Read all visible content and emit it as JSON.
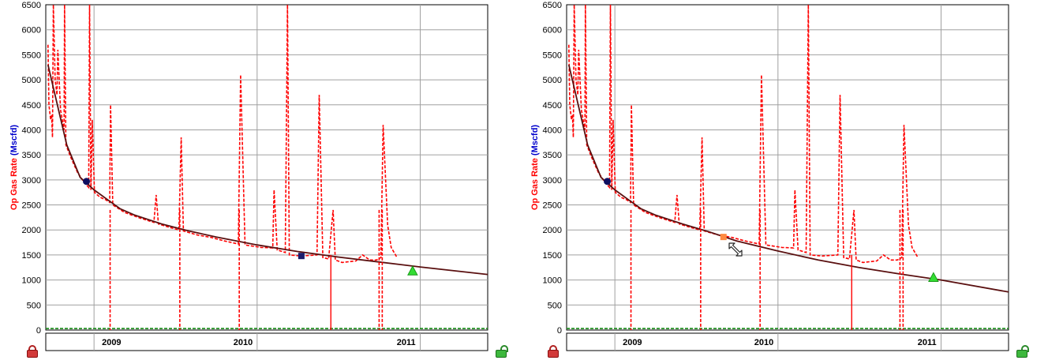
{
  "colors": {
    "data_line": "#ff0000",
    "forecast_line": "#5a1010",
    "baseline": "#138a13",
    "grid": "#a0a0a0",
    "label_red": "#ff0000",
    "label_blue": "#0000cc",
    "start_marker": "#101060",
    "handle_marker": "#1c1c6c",
    "handle_marker_active": "#ff8a40",
    "end_marker": "#33dd33"
  },
  "icons": {
    "left_lock": "red-lock-icon",
    "right_lock": "green-unlock-icon",
    "cursor": "diagonal-resize-cursor-icon"
  },
  "chart_data": [
    {
      "type": "line",
      "panel": "left",
      "ylabel_part1": "Op Gas Rate ",
      "ylabel_part2": "(Mscfd)",
      "ylim": [
        0,
        6500
      ],
      "yticks": [
        0,
        500,
        1000,
        1500,
        2000,
        2500,
        3000,
        3500,
        4000,
        4500,
        5000,
        5500,
        6000,
        6500
      ],
      "xlim": [
        "2008-09-15",
        "2011-06-01"
      ],
      "year_labels": [
        "2009",
        "2010",
        "2011"
      ],
      "grid": true,
      "series": [
        {
          "style": "dashed",
          "values": [
            [
              "2008-09-20",
              5700
            ],
            [
              "2008-09-22",
              4500
            ],
            [
              "2008-09-26",
              4200
            ],
            [
              "2008-09-28",
              4300
            ],
            [
              "2008-09-30",
              3850
            ],
            [
              "2008-10-02",
              6500
            ],
            [
              "2008-10-06",
              5000
            ],
            [
              "2008-10-10",
              4700
            ],
            [
              "2008-10-12",
              5600
            ],
            [
              "2008-10-18",
              4400
            ],
            [
              "2008-10-26",
              4000
            ],
            [
              "2008-10-27",
              6500
            ],
            [
              "2008-10-30",
              3700
            ],
            [
              "2008-11-10",
              3450
            ],
            [
              "2008-11-25",
              3150
            ],
            [
              "2008-12-10",
              2950
            ],
            [
              "2008-12-20",
              2850
            ],
            [
              "2008-12-22",
              6500
            ],
            [
              "2008-12-25",
              2800
            ],
            [
              "2008-12-28",
              4200
            ],
            [
              "2009-01-02",
              2750
            ],
            [
              "2009-01-15",
              2650
            ],
            [
              "2009-01-28",
              2600
            ],
            [
              "2009-02-05",
              2550
            ],
            [
              "2009-02-07",
              4500
            ],
            [
              "2009-02-12",
              2500
            ],
            [
              "2009-03-10",
              2350
            ],
            [
              "2009-04-10",
              2250
            ],
            [
              "2009-05-15",
              2150
            ],
            [
              "2009-05-20",
              2700
            ],
            [
              "2009-05-25",
              2120
            ],
            [
              "2009-06-20",
              2050
            ],
            [
              "2009-07-10",
              2000
            ],
            [
              "2009-07-15",
              3850
            ],
            [
              "2009-07-20",
              1980
            ],
            [
              "2009-08-20",
              1900
            ],
            [
              "2009-09-20",
              1850
            ],
            [
              "2009-10-20",
              1780
            ],
            [
              "2009-11-20",
              1720
            ],
            [
              "2009-11-25",
              5100
            ],
            [
              "2009-12-05",
              1700
            ],
            [
              "2010-01-10",
              1650
            ],
            [
              "2010-02-05",
              1640
            ],
            [
              "2010-02-08",
              2800
            ],
            [
              "2010-02-15",
              1600
            ],
            [
              "2010-03-05",
              1550
            ],
            [
              "2010-03-10",
              6500
            ],
            [
              "2010-03-14",
              1500
            ],
            [
              "2010-04-10",
              1480
            ],
            [
              "2010-05-15",
              1500
            ],
            [
              "2010-05-20",
              4700
            ],
            [
              "2010-05-28",
              1450
            ],
            [
              "2010-06-10",
              1420
            ],
            [
              "2010-06-20",
              2400
            ],
            [
              "2010-06-25",
              1400
            ],
            [
              "2010-07-10",
              1350
            ],
            [
              "2010-08-10",
              1380
            ],
            [
              "2010-08-25",
              1500
            ],
            [
              "2010-09-10",
              1400
            ],
            [
              "2010-09-25",
              1400
            ],
            [
              "2010-10-05",
              1450
            ],
            [
              "2010-10-10",
              4100
            ],
            [
              "2010-10-20",
              2100
            ],
            [
              "2010-10-28",
              1650
            ],
            [
              "2010-11-10",
              1450
            ]
          ]
        },
        {
          "style": "solid",
          "values": [
            [
              "2008-09-20",
              5300
            ],
            [
              "2008-11-01",
              3700
            ],
            [
              "2008-12-01",
              3050
            ],
            [
              "2009-01-01",
              2800
            ],
            [
              "2009-02-01",
              2600
            ],
            [
              "2009-03-01",
              2420
            ],
            [
              "2009-04-01",
              2300
            ],
            [
              "2009-06-01",
              2120
            ],
            [
              "2009-08-01",
              1980
            ],
            [
              "2009-10-01",
              1860
            ],
            [
              "2010-01-01",
              1700
            ],
            [
              "2010-04-01",
              1570
            ],
            [
              "2010-07-01",
              1460
            ],
            [
              "2010-10-01",
              1360
            ],
            [
              "2011-01-01",
              1260
            ],
            [
              "2011-06-01",
              1110
            ]
          ]
        },
        {
          "style": "baseline",
          "values": [
            [
              "2008-09-15",
              30
            ],
            [
              "2011-06-01",
              30
            ]
          ]
        }
      ],
      "markers": [
        {
          "type": "circle",
          "date": "2008-12-15",
          "value": 2970
        },
        {
          "type": "square",
          "date": "2010-04-10",
          "value": 1480
        },
        {
          "type": "triangle",
          "date": "2010-12-15",
          "value": 1180
        }
      ]
    },
    {
      "type": "line",
      "panel": "right",
      "ylabel_part1": "Op Gas Rate ",
      "ylabel_part2": "(Mscfd)",
      "ylim": [
        0,
        6500
      ],
      "yticks": [
        0,
        500,
        1000,
        1500,
        2000,
        2500,
        3000,
        3500,
        4000,
        4500,
        5000,
        5500,
        6000,
        6500
      ],
      "xlim": [
        "2008-09-15",
        "2011-06-01"
      ],
      "year_labels": [
        "2009",
        "2010",
        "2011"
      ],
      "grid": true,
      "series": [
        {
          "style": "dashed",
          "values": [
            [
              "2008-09-20",
              5700
            ],
            [
              "2008-09-22",
              4500
            ],
            [
              "2008-09-26",
              4200
            ],
            [
              "2008-09-28",
              4300
            ],
            [
              "2008-09-30",
              3850
            ],
            [
              "2008-10-02",
              6500
            ],
            [
              "2008-10-06",
              5000
            ],
            [
              "2008-10-10",
              4700
            ],
            [
              "2008-10-12",
              5600
            ],
            [
              "2008-10-18",
              4400
            ],
            [
              "2008-10-26",
              4000
            ],
            [
              "2008-10-27",
              6500
            ],
            [
              "2008-10-30",
              3700
            ],
            [
              "2008-11-10",
              3450
            ],
            [
              "2008-11-25",
              3150
            ],
            [
              "2008-12-10",
              2950
            ],
            [
              "2008-12-20",
              2850
            ],
            [
              "2008-12-22",
              6500
            ],
            [
              "2008-12-25",
              2800
            ],
            [
              "2008-12-28",
              4200
            ],
            [
              "2009-01-02",
              2750
            ],
            [
              "2009-01-15",
              2650
            ],
            [
              "2009-01-28",
              2600
            ],
            [
              "2009-02-05",
              2550
            ],
            [
              "2009-02-07",
              4500
            ],
            [
              "2009-02-12",
              2500
            ],
            [
              "2009-03-10",
              2350
            ],
            [
              "2009-04-10",
              2250
            ],
            [
              "2009-05-15",
              2150
            ],
            [
              "2009-05-20",
              2700
            ],
            [
              "2009-05-25",
              2120
            ],
            [
              "2009-06-20",
              2050
            ],
            [
              "2009-07-10",
              2000
            ],
            [
              "2009-07-15",
              3850
            ],
            [
              "2009-07-20",
              1980
            ],
            [
              "2009-08-20",
              1900
            ],
            [
              "2009-09-20",
              1850
            ],
            [
              "2009-10-20",
              1780
            ],
            [
              "2009-11-20",
              1720
            ],
            [
              "2009-11-25",
              5100
            ],
            [
              "2009-12-05",
              1700
            ],
            [
              "2010-01-10",
              1650
            ],
            [
              "2010-02-05",
              1640
            ],
            [
              "2010-02-08",
              2800
            ],
            [
              "2010-02-15",
              1600
            ],
            [
              "2010-03-05",
              1550
            ],
            [
              "2010-03-10",
              6500
            ],
            [
              "2010-03-14",
              1500
            ],
            [
              "2010-04-10",
              1480
            ],
            [
              "2010-05-15",
              1500
            ],
            [
              "2010-05-20",
              4700
            ],
            [
              "2010-05-28",
              1450
            ],
            [
              "2010-06-10",
              1420
            ],
            [
              "2010-06-20",
              2400
            ],
            [
              "2010-06-25",
              1400
            ],
            [
              "2010-07-10",
              1350
            ],
            [
              "2010-08-10",
              1380
            ],
            [
              "2010-08-25",
              1500
            ],
            [
              "2010-09-10",
              1400
            ],
            [
              "2010-09-25",
              1400
            ],
            [
              "2010-10-05",
              1450
            ],
            [
              "2010-10-10",
              4100
            ],
            [
              "2010-10-20",
              2100
            ],
            [
              "2010-10-28",
              1650
            ],
            [
              "2010-11-10",
              1450
            ]
          ]
        },
        {
          "style": "solid",
          "values": [
            [
              "2008-09-20",
              5300
            ],
            [
              "2008-11-01",
              3700
            ],
            [
              "2008-12-01",
              3050
            ],
            [
              "2009-01-01",
              2800
            ],
            [
              "2009-02-01",
              2600
            ],
            [
              "2009-03-01",
              2420
            ],
            [
              "2009-04-01",
              2300
            ],
            [
              "2009-06-01",
              2120
            ],
            [
              "2009-08-01",
              1960
            ],
            [
              "2009-10-01",
              1780
            ],
            [
              "2010-01-01",
              1580
            ],
            [
              "2010-04-01",
              1400
            ],
            [
              "2010-07-01",
              1250
            ],
            [
              "2010-10-01",
              1120
            ],
            [
              "2011-01-01",
              1000
            ],
            [
              "2011-06-01",
              760
            ]
          ]
        },
        {
          "style": "baseline",
          "values": [
            [
              "2008-09-15",
              30
            ],
            [
              "2011-06-01",
              30
            ]
          ]
        }
      ],
      "markers": [
        {
          "type": "circle",
          "date": "2008-12-15",
          "value": 2970
        },
        {
          "type": "square-active",
          "date": "2009-09-01",
          "value": 1860
        },
        {
          "type": "triangle",
          "date": "2010-12-15",
          "value": 1050
        }
      ]
    }
  ]
}
